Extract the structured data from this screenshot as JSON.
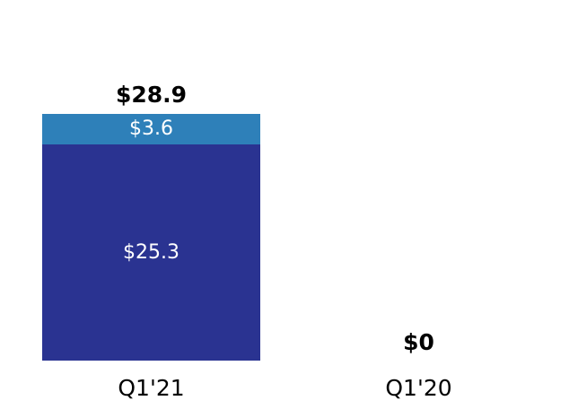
{
  "chart_data": {
    "type": "bar",
    "stacked": true,
    "title": "",
    "categories": [
      "Q1'21",
      "Q1'20"
    ],
    "series": [
      {
        "name": "secondary-top-segment",
        "color": "#2e80b9",
        "values": [
          3.6,
          0
        ]
      },
      {
        "name": "primary-bottom-segment",
        "color": "#2a3391",
        "values": [
          25.3,
          0
        ]
      }
    ],
    "totals": [
      28.9,
      0
    ],
    "total_labels": [
      "$28.9",
      "$0"
    ],
    "segment_labels": [
      [
        "$3.6",
        ""
      ],
      [
        "$25.3",
        ""
      ]
    ],
    "ylim": [
      0,
      28.9
    ],
    "grid": false,
    "legend": false,
    "axes_visible": false
  },
  "layout_colors": {
    "background": "#ffffff",
    "value_label_color": "#000000",
    "segment_label_color": "#ffffff"
  }
}
